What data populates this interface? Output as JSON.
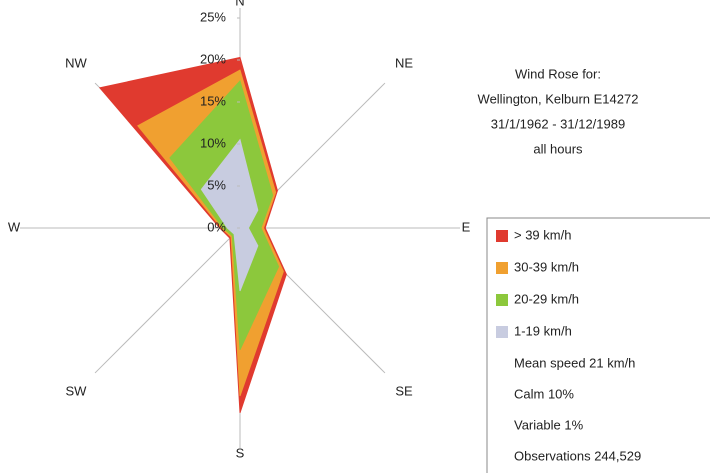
{
  "chart_data": {
    "type": "wind-rose",
    "title": [
      "Wind Rose for:",
      "Wellington, Kelburn E14272",
      "31/1/1962 - 31/12/1989",
      "all hours"
    ],
    "categories": [
      "N",
      "NE",
      "E",
      "SE",
      "S",
      "SW",
      "W",
      "NW"
    ],
    "series": [
      {
        "name": "> 39 km/h",
        "color": "#e03a2f",
        "values": [
          1.5,
          0.3,
          0.2,
          0.5,
          2,
          0.2,
          0.2,
          6.4
        ]
      },
      {
        "name": "30-39 km/h",
        "color": "#f0a030",
        "values": [
          1.3,
          0.5,
          0.3,
          0.8,
          5.5,
          0.2,
          0.2,
          5.4
        ]
      },
      {
        "name": "20-29 km/h",
        "color": "#8cc83c",
        "values": [
          7,
          2.5,
          1.5,
          3.5,
          7,
          0.3,
          0.5,
          5.3
        ]
      },
      {
        "name": "1-19 km/h",
        "color": "#c8cce0",
        "values": [
          10.5,
          3,
          1,
          3,
          7.5,
          1,
          1.5,
          6.5
        ]
      }
    ],
    "stacked": true,
    "rlim": [
      0,
      25
    ],
    "rticks": [
      {
        "value": 0,
        "label": "0%"
      },
      {
        "value": 5,
        "label": "5%"
      },
      {
        "value": 10,
        "label": "10%"
      },
      {
        "value": 15,
        "label": "15%"
      },
      {
        "value": 20,
        "label": "20%"
      },
      {
        "value": 25,
        "label": "25%"
      }
    ],
    "stats": [
      "Mean speed 21 km/h",
      "Calm 10%",
      "Variable 1%",
      "Observations 244,529"
    ]
  }
}
